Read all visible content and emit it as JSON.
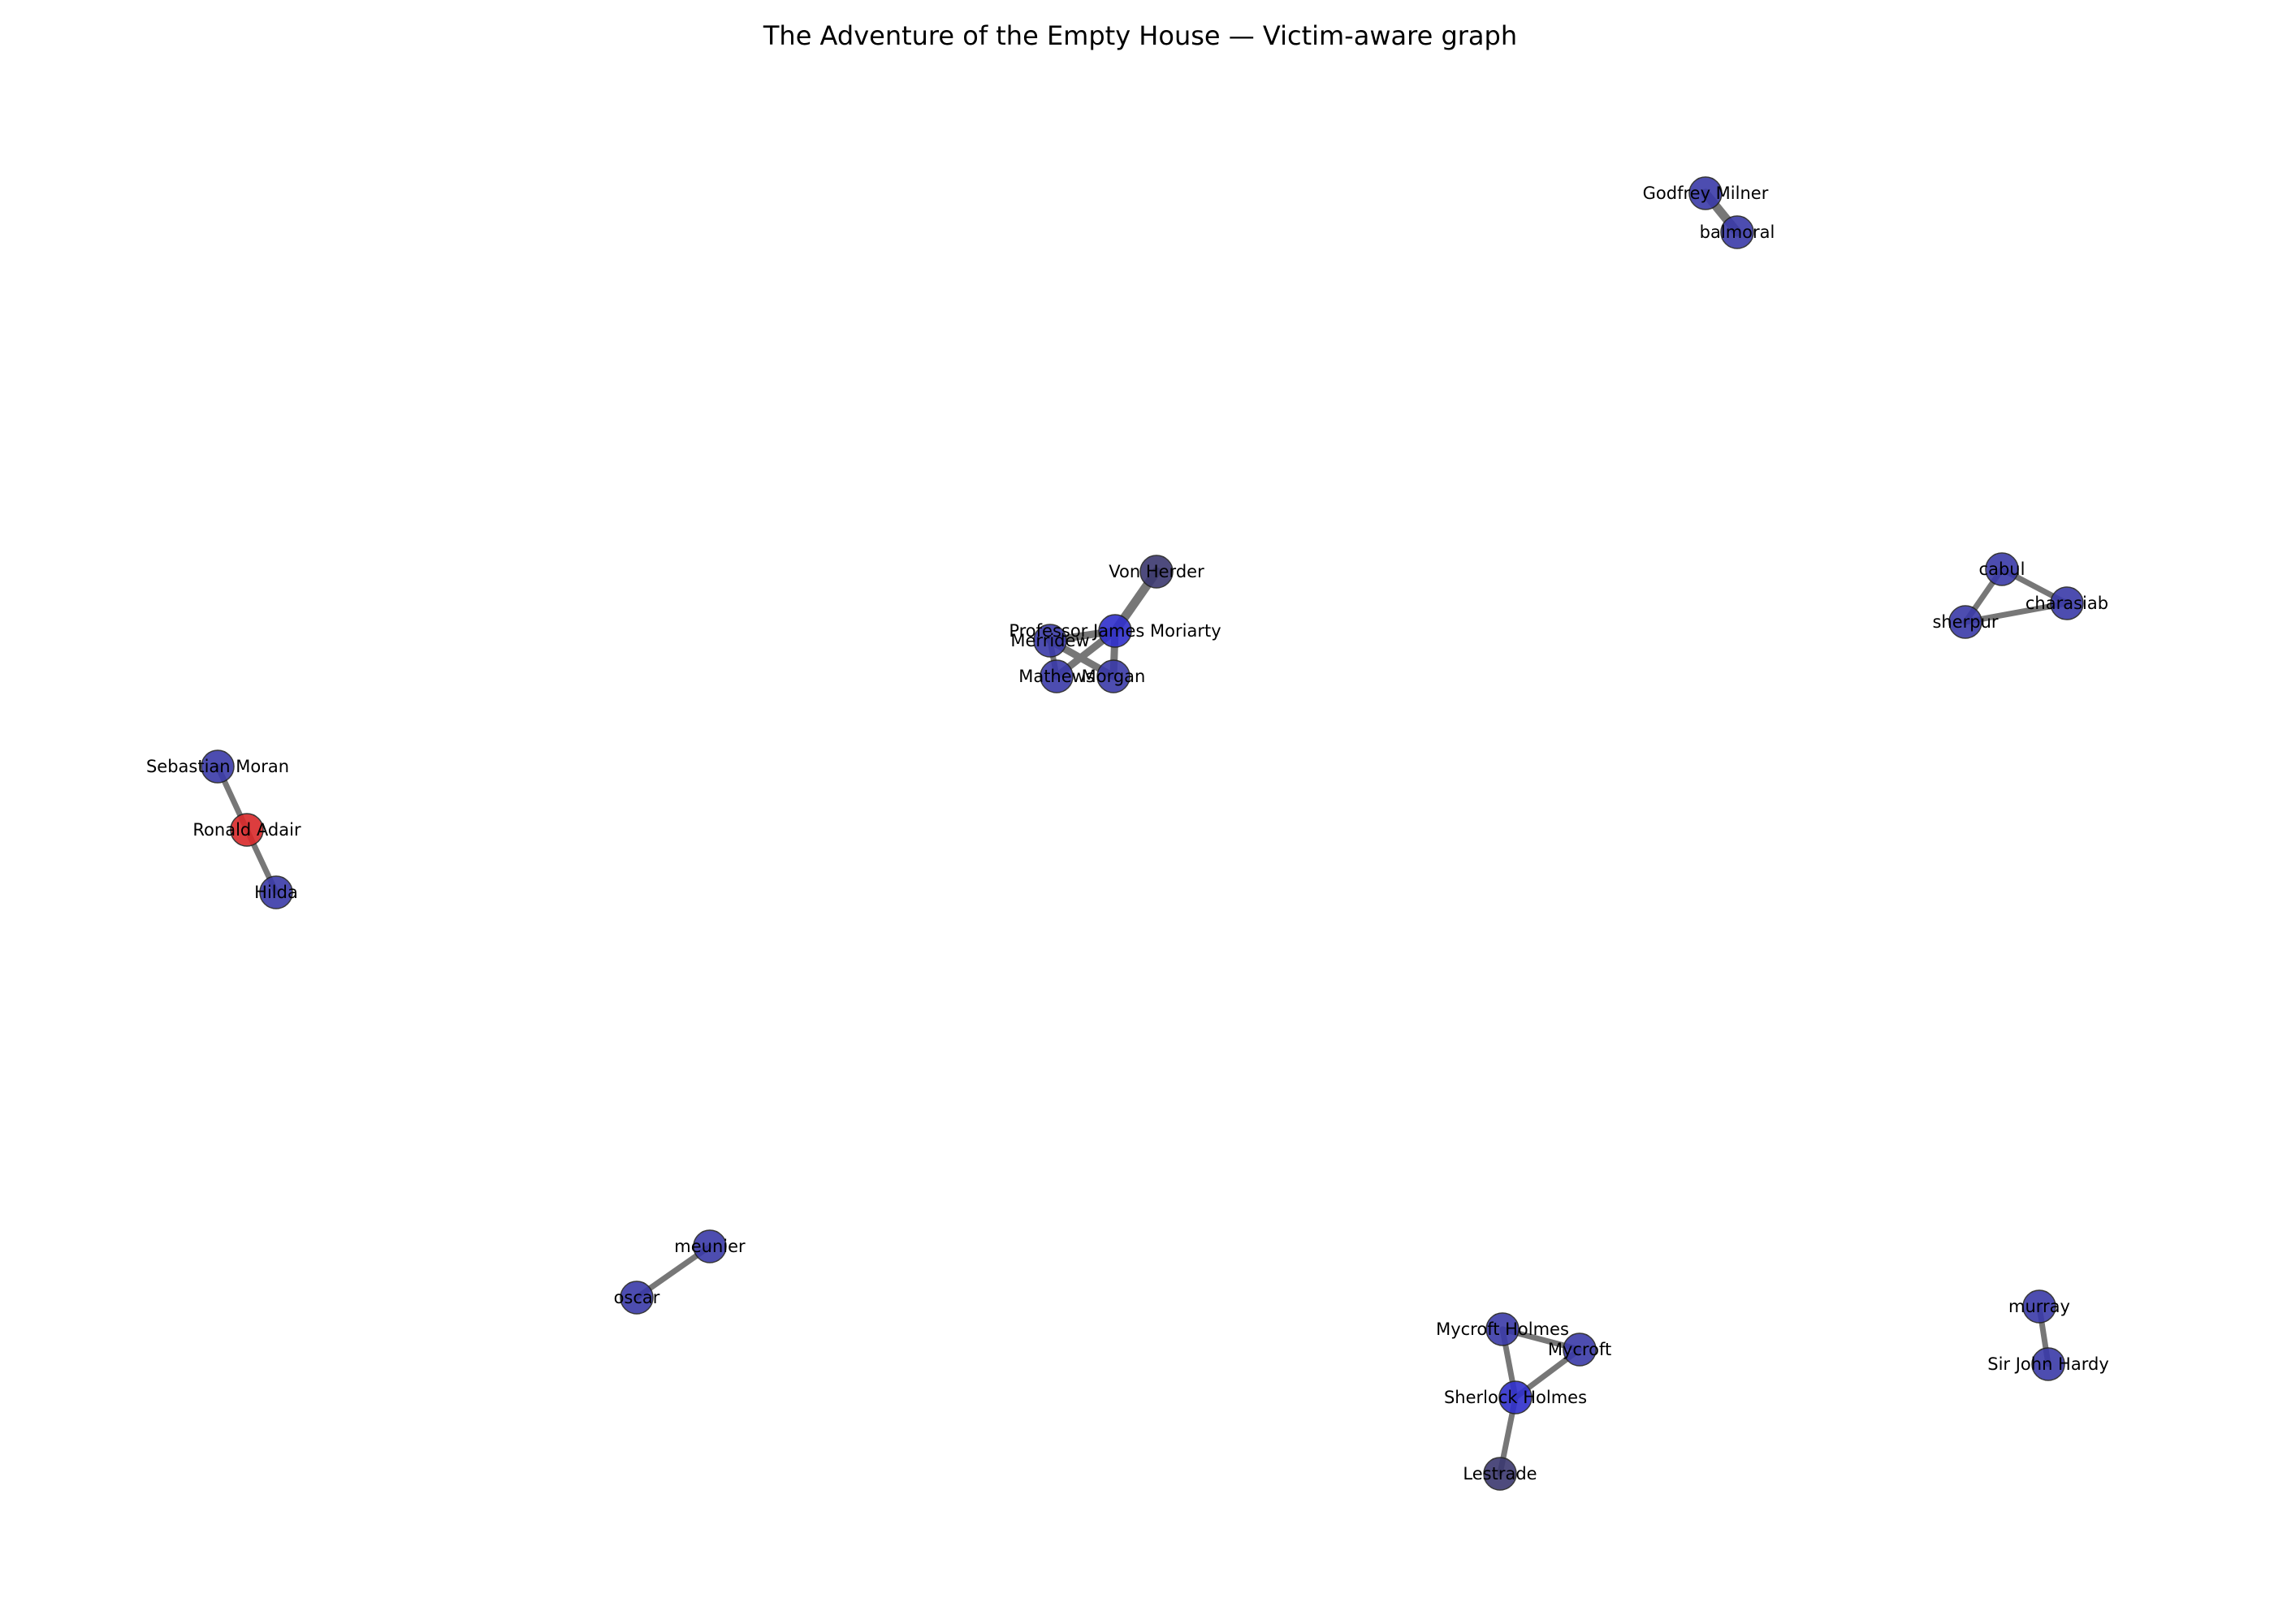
{
  "title": "The Adventure of the Empty House — Victim-aware graph",
  "colors": {
    "victim": "#d9292a",
    "person": "#3a3aa8",
    "hub": "#2f2fcc",
    "dark": "#3b3870",
    "edge": "#777777"
  },
  "nodes": [
    {
      "id": "godfrey_milner",
      "label": "Godfrey Milner",
      "role": "person"
    },
    {
      "id": "balmoral",
      "label": "balmoral",
      "role": "person"
    },
    {
      "id": "von_herder",
      "label": "Von Herder",
      "role": "dark"
    },
    {
      "id": "moriarty",
      "label": "Professor James Moriarty",
      "role": "hub"
    },
    {
      "id": "merridew",
      "label": "Merridew",
      "role": "person"
    },
    {
      "id": "mathews",
      "label": "Mathews",
      "role": "person"
    },
    {
      "id": "morgan",
      "label": "Morgan",
      "role": "person"
    },
    {
      "id": "cabul",
      "label": "cabul",
      "role": "person"
    },
    {
      "id": "charasiab",
      "label": "charasiab",
      "role": "person"
    },
    {
      "id": "sherpur",
      "label": "sherpur",
      "role": "person"
    },
    {
      "id": "sebastian_moran",
      "label": "Sebastian Moran",
      "role": "person"
    },
    {
      "id": "ronald_adair",
      "label": "Ronald Adair",
      "role": "victim"
    },
    {
      "id": "hilda",
      "label": "Hilda",
      "role": "person"
    },
    {
      "id": "meunier",
      "label": "meunier",
      "role": "person"
    },
    {
      "id": "oscar",
      "label": "oscar",
      "role": "person"
    },
    {
      "id": "mycroft_holmes",
      "label": "Mycroft Holmes",
      "role": "person"
    },
    {
      "id": "mycroft",
      "label": "Mycroft",
      "role": "person"
    },
    {
      "id": "sherlock_holmes",
      "label": "Sherlock Holmes",
      "role": "hub"
    },
    {
      "id": "lestrade",
      "label": "Lestrade",
      "role": "dark"
    },
    {
      "id": "murray",
      "label": "murray",
      "role": "person"
    },
    {
      "id": "sir_john_hardy",
      "label": "Sir John Hardy",
      "role": "person"
    }
  ],
  "edges": [
    {
      "source": "godfrey_milner",
      "target": "balmoral",
      "weight": 3
    },
    {
      "source": "von_herder",
      "target": "moriarty",
      "weight": 3
    },
    {
      "source": "moriarty",
      "target": "merridew",
      "weight": 2
    },
    {
      "source": "moriarty",
      "target": "mathews",
      "weight": 2
    },
    {
      "source": "moriarty",
      "target": "morgan",
      "weight": 2
    },
    {
      "source": "merridew",
      "target": "morgan",
      "weight": 2
    },
    {
      "source": "merridew",
      "target": "mathews",
      "weight": 1
    },
    {
      "source": "cabul",
      "target": "charasiab",
      "weight": 1
    },
    {
      "source": "cabul",
      "target": "sherpur",
      "weight": 1
    },
    {
      "source": "sherpur",
      "target": "charasiab",
      "weight": 1
    },
    {
      "source": "sebastian_moran",
      "target": "ronald_adair",
      "weight": 1
    },
    {
      "source": "ronald_adair",
      "target": "hilda",
      "weight": 1
    },
    {
      "source": "meunier",
      "target": "oscar",
      "weight": 1
    },
    {
      "source": "mycroft_holmes",
      "target": "mycroft",
      "weight": 1
    },
    {
      "source": "mycroft_holmes",
      "target": "sherlock_holmes",
      "weight": 1
    },
    {
      "source": "mycroft",
      "target": "sherlock_holmes",
      "weight": 1
    },
    {
      "source": "sherlock_holmes",
      "target": "lestrade",
      "weight": 1
    },
    {
      "source": "murray",
      "target": "sir_john_hardy",
      "weight": 1
    }
  ]
}
